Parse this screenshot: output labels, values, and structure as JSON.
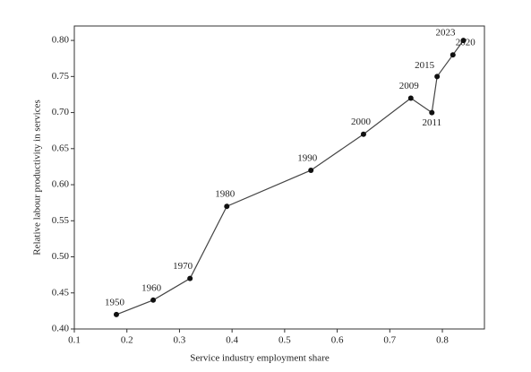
{
  "chart_data": {
    "type": "line",
    "x_label": "Service industry employment share",
    "y_label": "Relative labour productivity in services",
    "x": [
      0.18,
      0.25,
      0.32,
      0.39,
      0.55,
      0.65,
      0.74,
      0.78,
      0.79,
      0.82,
      0.84
    ],
    "values": [
      0.42,
      0.44,
      0.47,
      0.57,
      0.62,
      0.67,
      0.72,
      0.7,
      0.75,
      0.78,
      0.8
    ],
    "labels": [
      "1950",
      "1960",
      "1970",
      "1980",
      "1990",
      "2000",
      "2009",
      "2011",
      "2015",
      "2020",
      "2023"
    ],
    "color": "#444444",
    "xlim": [
      0.1,
      0.88
    ],
    "ylim": [
      0.4,
      0.82
    ],
    "xticks": [
      0.1,
      0.2,
      0.3,
      0.4,
      0.5,
      0.6,
      0.7,
      0.8
    ],
    "yticks": [
      {
        "value": 0.4,
        "label": "0.40"
      },
      0.45,
      {
        "value": 0.5,
        "label": "0.50"
      },
      0.55,
      {
        "value": 0.6,
        "label": "0.60"
      },
      0.65,
      {
        "value": 0.7,
        "label": "0.70"
      },
      0.75,
      {
        "value": 0.8,
        "label": "0.80"
      }
    ],
    "grid": false
  }
}
